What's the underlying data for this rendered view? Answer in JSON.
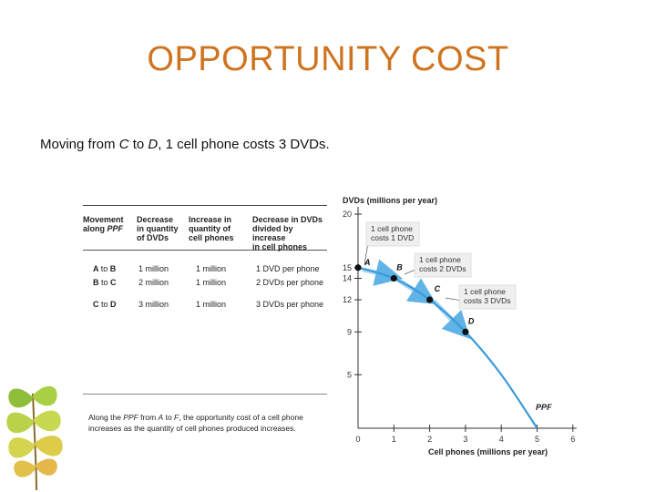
{
  "slide": {
    "title": "OPPORTUNITY COST",
    "subtitle_parts": {
      "a": "Moving from ",
      "b": "C",
      "c": " to ",
      "d": "D",
      "e": ", 1 cell phone costs 3 DVDs."
    }
  },
  "table": {
    "headers": {
      "movement": [
        "Movement",
        "along PPF"
      ],
      "decrease": [
        "Decrease",
        "in quantity",
        "of DVDs"
      ],
      "increase": [
        "Increase in",
        "quantity of",
        "cell phones"
      ],
      "ratio": [
        "Decrease in DVDs",
        "divided by increase",
        "in cell phones"
      ]
    },
    "rows": [
      {
        "from": "A",
        "to": "B",
        "decrease": "1 million",
        "increase": "1 million",
        "ratio": "1 DVD per phone"
      },
      {
        "from": "B",
        "to": "C",
        "decrease": "2 million",
        "increase": "1 million",
        "ratio": "2 DVDs per phone"
      },
      {
        "from": "C",
        "to": "D",
        "decrease": "3 million",
        "increase": "1 million",
        "ratio": "3 DVDs per phone"
      }
    ],
    "to_word": "to",
    "note_parts": {
      "a": "Along the ",
      "b": "PPF",
      "c": " from ",
      "d": "A",
      "e": " to ",
      "f": "F",
      "g": ", the opportunity cost of a cell phone increases as the quantity of cell phones produced increases."
    }
  },
  "chart_data": {
    "type": "line",
    "ylabel": "DVDs (millions per year)",
    "xlabel": "Cell phones (millions per year)",
    "xlim": [
      0,
      6
    ],
    "ylim": [
      0,
      20
    ],
    "x_ticks": [
      "0",
      "1",
      "2",
      "3",
      "4",
      "5",
      "6"
    ],
    "y_ticks": [
      {
        "value": 5,
        "label": "5"
      },
      {
        "value": 9,
        "label": "9"
      },
      {
        "value": 12,
        "label": "12"
      },
      {
        "value": 14,
        "label": "14"
      },
      {
        "value": 15,
        "label": "15"
      },
      {
        "value": 20,
        "label": "20"
      }
    ],
    "series": [
      {
        "name": "PPF",
        "x": [
          0,
          1,
          2,
          3,
          4,
          5
        ],
        "y": [
          15,
          14,
          12,
          9,
          5,
          0
        ],
        "color": "#3a9bd9"
      }
    ],
    "points": [
      {
        "label": "A",
        "x": 0,
        "y": 15
      },
      {
        "label": "B",
        "x": 1,
        "y": 14
      },
      {
        "label": "C",
        "x": 2,
        "y": 12
      },
      {
        "label": "D",
        "x": 3,
        "y": 9
      }
    ],
    "annotations": [
      {
        "lines": [
          "1 cell phone",
          "costs 1 DVD"
        ]
      },
      {
        "lines": [
          "1 cell phone",
          "costs 2 DVDs"
        ]
      },
      {
        "lines": [
          "1 cell phone",
          "costs 3 DVDs"
        ]
      }
    ],
    "curve_label": "PPF",
    "colors": {
      "curve": "#3a9bd9",
      "arrow": "#5fb3e6",
      "callout_bg": "#efefef",
      "title": "#d0731f"
    }
  }
}
